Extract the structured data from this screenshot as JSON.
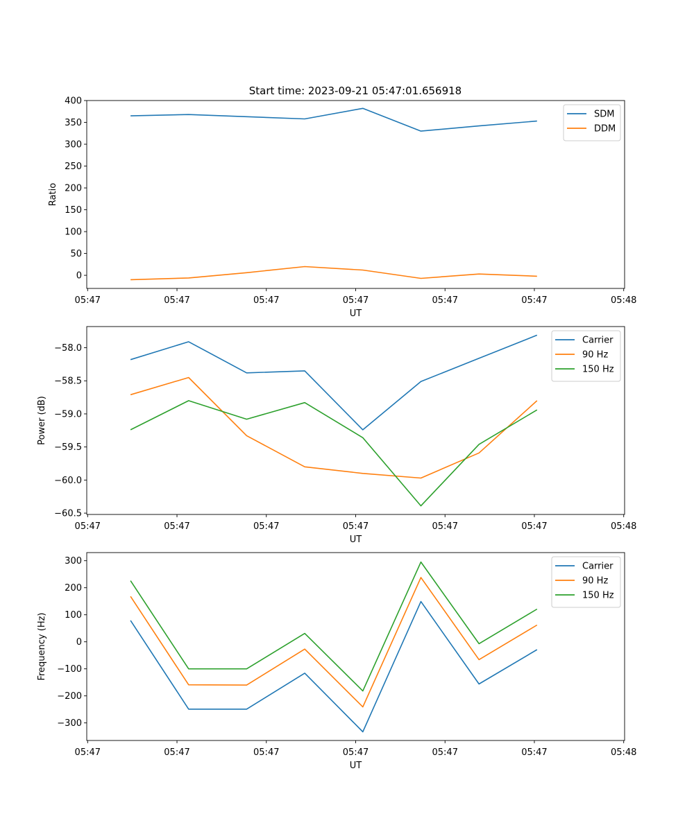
{
  "title": "Start time: 2023-09-21 05:47:01.656918",
  "chart_data": [
    {
      "type": "line",
      "title": "Start time: 2023-09-21 05:47:01.656918",
      "xlabel": "UT",
      "ylabel": "Ratio",
      "ylim": [
        -30,
        400
      ],
      "yticks": [
        0,
        50,
        100,
        150,
        200,
        250,
        300,
        350,
        400
      ],
      "ytick_labels": [
        "0",
        "50",
        "100",
        "150",
        "200",
        "250",
        "300",
        "350",
        "400"
      ],
      "xticks": [
        0,
        1,
        2,
        3,
        4,
        5,
        6
      ],
      "xtick_labels": [
        "05:47",
        "05:47",
        "05:47",
        "05:47",
        "05:47",
        "05:47",
        "05:48"
      ],
      "xlim": [
        -0.01,
        6.01
      ],
      "x": [
        0.48,
        1.13,
        1.78,
        2.43,
        3.08,
        3.73,
        4.38,
        5.03
      ],
      "legend_loc": "upper-right",
      "series": [
        {
          "name": "SDM",
          "color": "#1f77b4",
          "values": [
            365,
            368,
            363,
            358,
            382,
            330,
            342,
            353
          ]
        },
        {
          "name": "DDM",
          "color": "#ff7f0e",
          "values": [
            -10,
            -6,
            6,
            20,
            12,
            -7,
            3,
            -2
          ]
        }
      ]
    },
    {
      "type": "line",
      "title": "",
      "xlabel": "UT",
      "ylabel": "Power (dB)",
      "ylim": [
        -60.52,
        -57.68
      ],
      "yticks": [
        -60.5,
        -60.0,
        -59.5,
        -59.0,
        -58.5,
        -58.0
      ],
      "ytick_labels": [
        "−60.5",
        "−60.0",
        "−59.5",
        "−59.0",
        "−58.5",
        "−58.0"
      ],
      "xticks": [
        0,
        1,
        2,
        3,
        4,
        5,
        6
      ],
      "xtick_labels": [
        "05:47",
        "05:47",
        "05:47",
        "05:47",
        "05:47",
        "05:47",
        "05:48"
      ],
      "xlim": [
        -0.01,
        6.01
      ],
      "x": [
        0.48,
        1.13,
        1.78,
        2.43,
        3.08,
        3.73,
        4.38,
        5.03
      ],
      "legend_loc": "upper-right",
      "series": [
        {
          "name": "Carrier",
          "color": "#1f77b4",
          "values": [
            -58.18,
            -57.91,
            -58.38,
            -58.35,
            -59.24,
            -58.51,
            -58.16,
            -57.81
          ]
        },
        {
          "name": "90 Hz",
          "color": "#ff7f0e",
          "values": [
            -58.71,
            -58.45,
            -59.33,
            -59.8,
            -59.9,
            -59.97,
            -59.59,
            -58.8
          ]
        },
        {
          "name": "150 Hz",
          "color": "#2ca02c",
          "values": [
            -59.24,
            -58.8,
            -59.08,
            -58.83,
            -59.36,
            -60.39,
            -59.46,
            -58.94
          ]
        }
      ]
    },
    {
      "type": "line",
      "title": "",
      "xlabel": "UT",
      "ylabel": "Frequency (Hz)",
      "ylim": [
        -365,
        330
      ],
      "yticks": [
        -300,
        -200,
        -100,
        0,
        100,
        200,
        300
      ],
      "ytick_labels": [
        "−300",
        "−200",
        "−100",
        "0",
        "100",
        "200",
        "300"
      ],
      "xticks": [
        0,
        1,
        2,
        3,
        4,
        5,
        6
      ],
      "xtick_labels": [
        "05:47",
        "05:47",
        "05:47",
        "05:47",
        "05:47",
        "05:47",
        "05:48"
      ],
      "xlim": [
        -0.01,
        6.01
      ],
      "x": [
        0.48,
        1.13,
        1.78,
        2.43,
        3.08,
        3.73,
        4.38,
        5.03
      ],
      "legend_loc": "upper-right",
      "series": [
        {
          "name": "Carrier",
          "color": "#1f77b4",
          "values": [
            79,
            -249,
            -249,
            -116,
            -333,
            149,
            -156,
            -29
          ]
        },
        {
          "name": "90 Hz",
          "color": "#ff7f0e",
          "values": [
            168,
            -159,
            -160,
            -27,
            -241,
            238,
            -66,
            62
          ]
        },
        {
          "name": "150 Hz",
          "color": "#2ca02c",
          "values": [
            226,
            -100,
            -100,
            31,
            -182,
            295,
            -7,
            121
          ]
        }
      ]
    }
  ]
}
